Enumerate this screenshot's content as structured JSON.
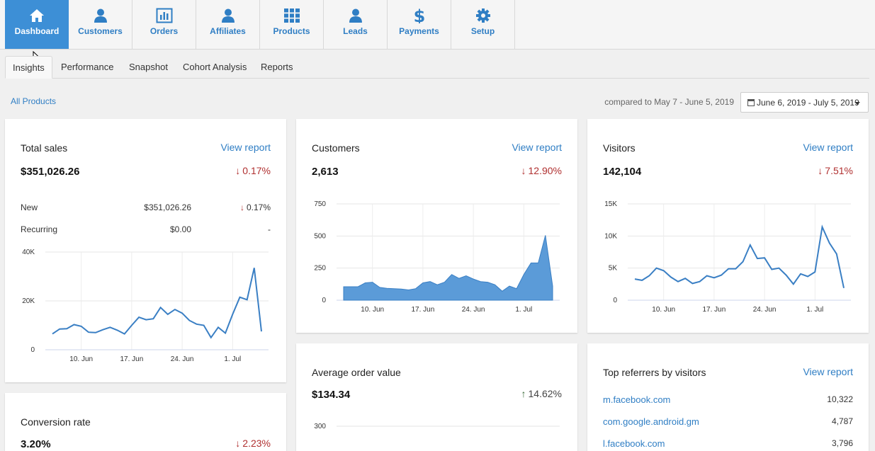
{
  "nav": {
    "items": [
      {
        "label": "Dashboard",
        "icon": "home-icon",
        "active": true
      },
      {
        "label": "Customers",
        "icon": "user-icon"
      },
      {
        "label": "Orders",
        "icon": "bar-chart-icon"
      },
      {
        "label": "Affiliates",
        "icon": "user-icon"
      },
      {
        "label": "Products",
        "icon": "grid-icon"
      },
      {
        "label": "Leads",
        "icon": "user-icon"
      },
      {
        "label": "Payments",
        "icon": "dollar-icon"
      },
      {
        "label": "Setup",
        "icon": "gear-icon"
      }
    ]
  },
  "subtabs": [
    "Insights",
    "Performance",
    "Snapshot",
    "Cohort Analysis",
    "Reports"
  ],
  "filter": {
    "all_products": "All Products",
    "compared": "compared to May 7 - June 5, 2019",
    "date_range": "June 6, 2019 - July 5, 2019"
  },
  "total_sales": {
    "title": "Total sales",
    "link": "View report",
    "value": "$351,026.26",
    "change": "0.17%",
    "rows": [
      {
        "label": "New",
        "value": "$351,026.26",
        "change": "0.17%"
      },
      {
        "label": "Recurring",
        "value": "$0.00",
        "change": "-"
      }
    ]
  },
  "customers": {
    "title": "Customers",
    "link": "View report",
    "value": "2,613",
    "change": "12.90%"
  },
  "visitors": {
    "title": "Visitors",
    "link": "View report",
    "value": "142,104",
    "change": "7.51%"
  },
  "aov": {
    "title": "Average order value",
    "value": "$134.34",
    "change": "14.62%"
  },
  "conversion": {
    "title": "Conversion rate",
    "value": "3.20%",
    "change": "2.23%"
  },
  "referrers": {
    "title": "Top referrers by visitors",
    "link": "View report",
    "items": [
      {
        "name": "m.facebook.com",
        "value": "10,322"
      },
      {
        "name": "com.google.android.gm",
        "value": "4,787"
      },
      {
        "name": "l.facebook.com",
        "value": "3,796"
      }
    ]
  },
  "chart_data": [
    {
      "type": "line",
      "x": [
        "Jun 6",
        "Jun 7",
        "Jun 8",
        "Jun 9",
        "Jun 10",
        "Jun 11",
        "Jun 12",
        "Jun 13",
        "Jun 14",
        "Jun 15",
        "Jun 16",
        "Jun 17",
        "Jun 18",
        "Jun 19",
        "Jun 20",
        "Jun 21",
        "Jun 22",
        "Jun 23",
        "Jun 24",
        "Jun 25",
        "Jun 26",
        "Jun 27",
        "Jun 28",
        "Jun 29",
        "Jun 30",
        "Jul 1",
        "Jul 2",
        "Jul 3",
        "Jul 4",
        "Jul 5"
      ],
      "xticks": [
        "10. Jun",
        "17. Jun",
        "24. Jun",
        "1. Jul"
      ],
      "yticks": [
        "0",
        "20K",
        "40K"
      ],
      "ylim": [
        0,
        40000
      ],
      "series": [
        {
          "values": [
            6500,
            8500,
            8600,
            10300,
            9600,
            7200,
            7000,
            8200,
            9200,
            8000,
            6500,
            10000,
            13300,
            12300,
            12700,
            17300,
            14500,
            16500,
            15000,
            12000,
            10500,
            10000,
            5000,
            9200,
            6800,
            14500,
            21500,
            20500,
            33500,
            7500
          ]
        }
      ],
      "color": "#3a7fc4"
    },
    {
      "type": "area",
      "x": [
        "Jun 6",
        "Jun 7",
        "Jun 8",
        "Jun 9",
        "Jun 10",
        "Jun 11",
        "Jun 12",
        "Jun 13",
        "Jun 14",
        "Jun 15",
        "Jun 16",
        "Jun 17",
        "Jun 18",
        "Jun 19",
        "Jun 20",
        "Jun 21",
        "Jun 22",
        "Jun 23",
        "Jun 24",
        "Jun 25",
        "Jun 26",
        "Jun 27",
        "Jun 28",
        "Jun 29",
        "Jun 30",
        "Jul 1",
        "Jul 2",
        "Jul 3",
        "Jul 4",
        "Jul 5"
      ],
      "xticks": [
        "10. Jun",
        "17. Jun",
        "24. Jun",
        "1. Jul"
      ],
      "yticks": [
        "0",
        "250",
        "500",
        "750"
      ],
      "ylim": [
        0,
        750
      ],
      "series": [
        {
          "values": [
            105,
            105,
            105,
            135,
            140,
            100,
            92,
            90,
            87,
            80,
            90,
            135,
            145,
            120,
            140,
            200,
            170,
            190,
            165,
            145,
            140,
            120,
            70,
            110,
            90,
            200,
            290,
            290,
            505,
            110
          ]
        }
      ],
      "color": "#5b9bd8"
    },
    {
      "type": "line",
      "x": [
        "Jun 6",
        "Jun 7",
        "Jun 8",
        "Jun 9",
        "Jun 10",
        "Jun 11",
        "Jun 12",
        "Jun 13",
        "Jun 14",
        "Jun 15",
        "Jun 16",
        "Jun 17",
        "Jun 18",
        "Jun 19",
        "Jun 20",
        "Jun 21",
        "Jun 22",
        "Jun 23",
        "Jun 24",
        "Jun 25",
        "Jun 26",
        "Jun 27",
        "Jun 28",
        "Jun 29",
        "Jun 30",
        "Jul 1",
        "Jul 2",
        "Jul 3",
        "Jul 4",
        "Jul 5"
      ],
      "xticks": [
        "10. Jun",
        "17. Jun",
        "24. Jun",
        "1. Jul"
      ],
      "yticks": [
        "0",
        "5K",
        "10K",
        "15K"
      ],
      "ylim": [
        0,
        15000
      ],
      "series": [
        {
          "values": [
            3300,
            3100,
            3800,
            5000,
            4600,
            3600,
            2900,
            3400,
            2600,
            2900,
            3800,
            3500,
            3900,
            4900,
            4900,
            6000,
            8600,
            6500,
            6600,
            4800,
            5000,
            3900,
            2500,
            4100,
            3700,
            4400,
            11400,
            8900,
            7200,
            1900
          ]
        }
      ],
      "color": "#3a7fc4"
    },
    {
      "type": "area",
      "x": [],
      "yticks": [
        "300"
      ],
      "ylim": [
        0,
        300
      ],
      "series": []
    }
  ]
}
